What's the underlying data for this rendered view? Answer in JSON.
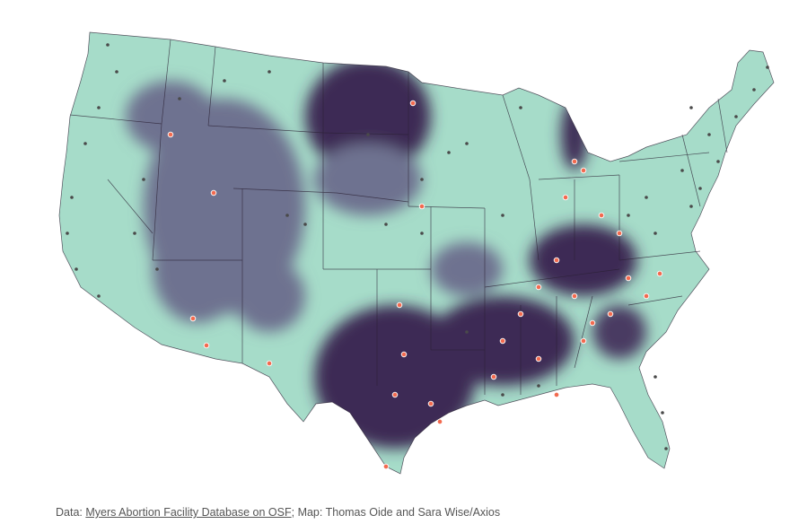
{
  "credit": {
    "prefix": "Data: ",
    "link_text": "Myers Abortion Facility Database on OSF",
    "suffix": "; Map: Thomas Oide and Sara Wise/Axios"
  },
  "colors": {
    "near_access": "#a6dcc9",
    "mid_access": "#6e7290",
    "far_access": "#3e2a55",
    "state_border": "#2a2033",
    "facility_current": "#4a4a4a",
    "facility_former": "#f26a4f"
  },
  "legend": {
    "facility_dot_dark": "facility-dot",
    "facility_dot_orange": "facility-dot-highlighted"
  }
}
